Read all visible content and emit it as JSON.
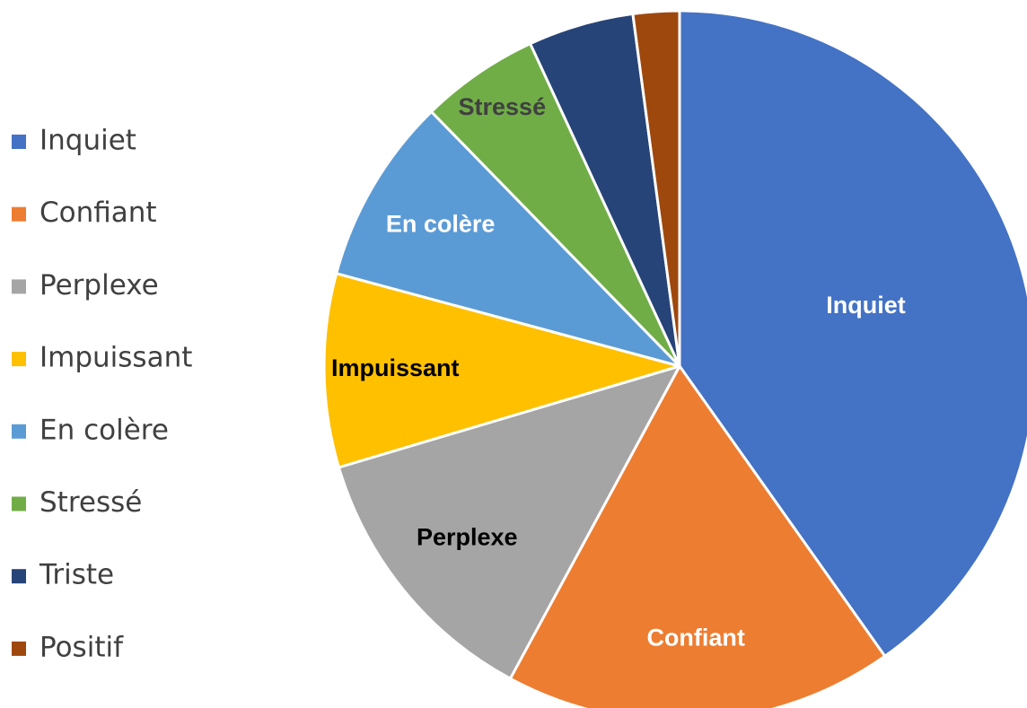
{
  "chart_data": {
    "type": "pie",
    "categories": [
      "Inquiet",
      "Confiant",
      "Perplexe",
      "Impuissant",
      "En colère",
      "Stressé",
      "Triste",
      "Positif"
    ],
    "values": [
      40.2,
      17.7,
      12.5,
      8.8,
      8.5,
      5.4,
      4.8,
      2.1
    ],
    "colors": [
      "#4472c4",
      "#ed7d31",
      "#a5a5a5",
      "#ffc000",
      "#5b9bd5",
      "#70ad47",
      "#264478",
      "#9e480e"
    ],
    "data_labels": [
      true,
      true,
      true,
      true,
      true,
      true,
      false,
      false
    ],
    "label_colors": [
      "#ffffff",
      "#ffffff",
      "#000000",
      "#000000",
      "#ffffff",
      "#404040",
      "#ffffff",
      "#ffffff"
    ],
    "legend": "left"
  }
}
